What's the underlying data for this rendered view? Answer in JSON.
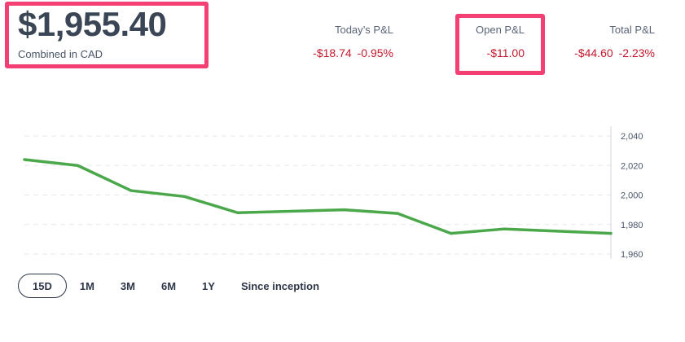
{
  "header": {
    "balance": "$1,955.40",
    "balance_sub": "Combined in CAD"
  },
  "stats": {
    "today": {
      "label": "Today’s P&L",
      "amount": "-$18.74",
      "percent": "-0.95%"
    },
    "open": {
      "label": "Open P&L",
      "amount": "-$11.00"
    },
    "total": {
      "label": "Total P&L",
      "amount": "-$44.60",
      "percent": "-2.23%"
    }
  },
  "colors": {
    "highlight": "#f43f75",
    "negative": "#c5192d",
    "line": "#4aa84a",
    "grid": "#e5e7eb"
  },
  "ranges": {
    "items": [
      "15D",
      "1M",
      "3M",
      "6M",
      "1Y",
      "Since inception"
    ],
    "selected": "15D"
  },
  "chart_data": {
    "type": "line",
    "title": "",
    "xlabel": "",
    "ylabel": "",
    "ylim": [
      1960,
      2040
    ],
    "y_ticks": [
      1960,
      1980,
      2000,
      2020,
      2040
    ],
    "y_tick_labels": [
      "1,960",
      "1,980",
      "2,000",
      "2,020",
      "2,040"
    ],
    "grid": true,
    "series": [
      {
        "values": [
          2024,
          2020,
          2003,
          1999,
          1988,
          1989,
          1990,
          1987.5,
          1974,
          1977,
          1975.5,
          1974
        ]
      }
    ]
  }
}
